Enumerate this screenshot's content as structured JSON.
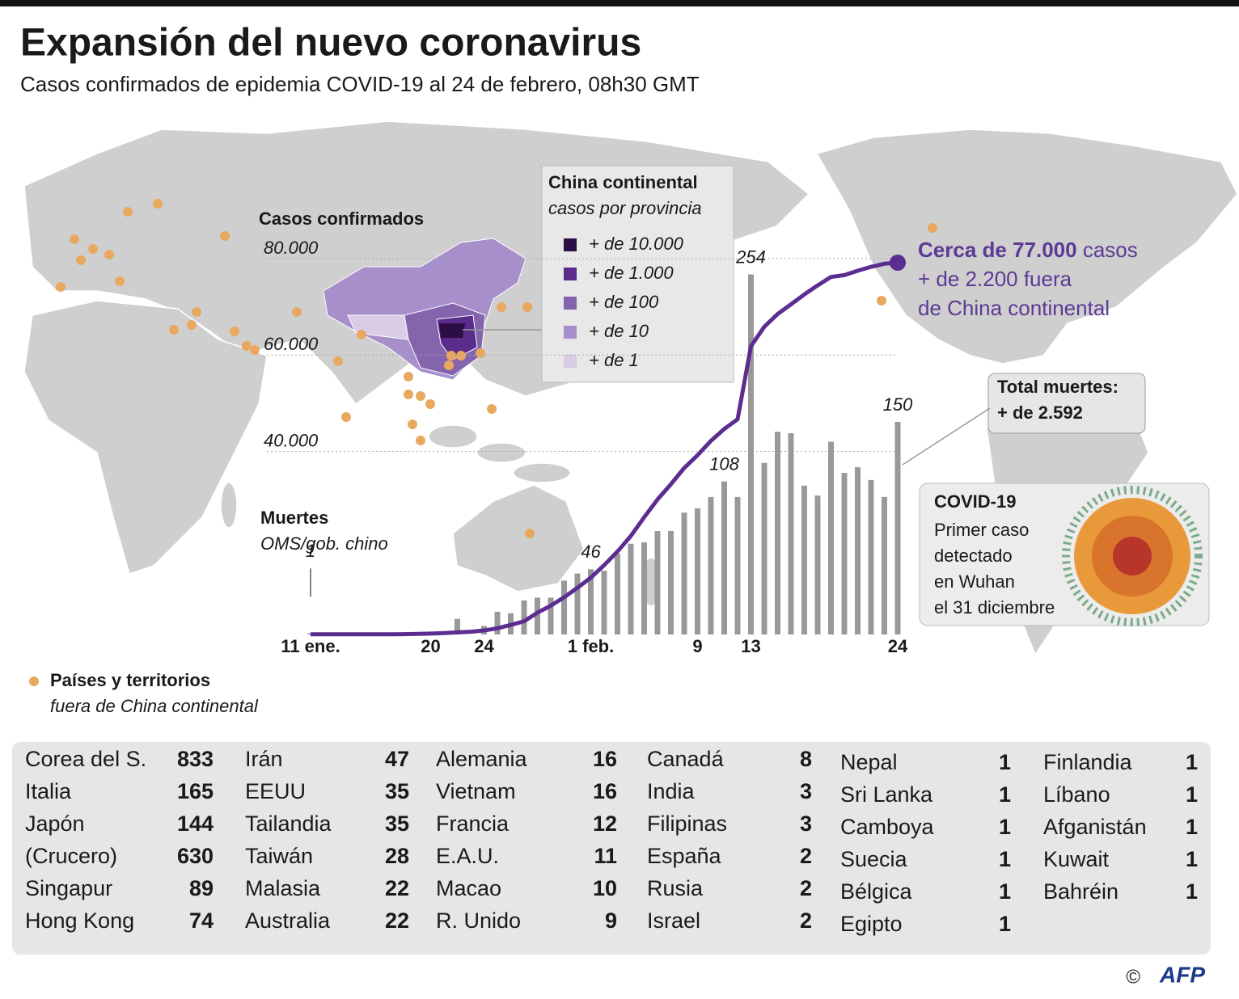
{
  "chart_data": {
    "type": "combo",
    "title": "Expansión del nuevo coronavirus",
    "subtitle": "Casos confirmados de epidemia COVID-19 al 24 de febrero, 08h30 GMT",
    "categories": [
      "11 ene.",
      null,
      null,
      null,
      null,
      null,
      null,
      null,
      null,
      "20",
      null,
      null,
      null,
      "24",
      null,
      null,
      null,
      null,
      null,
      null,
      null,
      "1 feb.",
      null,
      null,
      null,
      null,
      null,
      null,
      null,
      "9",
      null,
      null,
      null,
      "13",
      null,
      null,
      null,
      null,
      null,
      null,
      null,
      null,
      null,
      null,
      "24"
    ],
    "ylim": [
      0,
      80000
    ],
    "yticks": [
      {
        "value": 40000,
        "label": "40.000"
      },
      {
        "value": 60000,
        "label": "60.000"
      },
      {
        "value": 80000,
        "label": "80.000"
      }
    ],
    "y2lim": [
      0,
      272
    ],
    "grid": true,
    "series": [
      {
        "name": "Casos confirmados",
        "type": "line",
        "color": "#5c2d91",
        "values": [
          41,
          41,
          41,
          41,
          41,
          41,
          45,
          62,
          121,
          198,
          291,
          440,
          571,
          830,
          1287,
          1975,
          2744,
          4515,
          5974,
          7711,
          9692,
          11791,
          14380,
          17205,
          20438,
          24324,
          28018,
          31161,
          34546,
          37198,
          40171,
          42638,
          44653,
          59804,
          63851,
          66492,
          68500,
          70548,
          72436,
          74185,
          74576,
          75465,
          76288,
          76936,
          77150
        ]
      },
      {
        "name": "Muertes",
        "source": "OMS/gob. chino",
        "type": "bar",
        "axis": "y2",
        "color": "#999999",
        "values": [
          1,
          0,
          0,
          0,
          0,
          0,
          0,
          0,
          0,
          0,
          0,
          11,
          0,
          6,
          16,
          15,
          24,
          26,
          26,
          38,
          43,
          46,
          45,
          57,
          64,
          65,
          73,
          73,
          86,
          89,
          97,
          108,
          97,
          254,
          121,
          143,
          142,
          105,
          98,
          136,
          114,
          118,
          109,
          97,
          150
        ],
        "value_labels": [
          "1",
          null,
          null,
          null,
          null,
          null,
          null,
          null,
          null,
          null,
          null,
          null,
          null,
          null,
          null,
          null,
          null,
          null,
          null,
          null,
          null,
          "46",
          null,
          null,
          null,
          null,
          null,
          null,
          null,
          null,
          null,
          "108",
          null,
          "254",
          null,
          null,
          null,
          null,
          null,
          null,
          null,
          null,
          null,
          null,
          "150"
        ]
      }
    ],
    "cases_note": [
      "Cerca de 77.000",
      "casos",
      "+ de 2.200 fuera",
      "de China continental"
    ],
    "deaths_note": [
      "Total muertes:",
      "+ de 2.592"
    ]
  },
  "china_map": {
    "title": "China continental",
    "subtitle": "casos por provincia",
    "classes": [
      {
        "label": "+ de 10.000",
        "color": "#2d0e44"
      },
      {
        "label": "+ de 1.000",
        "color": "#5a2d8c"
      },
      {
        "label": "+ de 100",
        "color": "#8464ad"
      },
      {
        "label": "+ de 10",
        "color": "#a78fcb"
      },
      {
        "label": "+ de 1",
        "color": "#d8cce6"
      }
    ]
  },
  "map_legend": {
    "title": "Países y territorios",
    "subtitle": "fuera de China continental",
    "color": "#e8a860"
  },
  "info_box": {
    "title": "COVID-19",
    "lines": [
      "Primer caso",
      "detectado",
      "en Wuhan",
      "el 31 diciembre"
    ]
  },
  "table": {
    "columns": [
      [
        [
          "Corea del S.",
          833
        ],
        [
          "Italia",
          165
        ],
        [
          "Japón",
          144
        ],
        [
          "(Crucero)",
          630
        ],
        [
          "Singapur",
          89
        ],
        [
          "Hong Kong",
          74
        ]
      ],
      [
        [
          "Irán",
          47
        ],
        [
          "EEUU",
          35
        ],
        [
          "Tailandia",
          35
        ],
        [
          "Taiwán",
          28
        ],
        [
          "Malasia",
          22
        ],
        [
          "Australia",
          22
        ]
      ],
      [
        [
          "Alemania",
          16
        ],
        [
          "Vietnam",
          16
        ],
        [
          "Francia",
          12
        ],
        [
          "E.A.U.",
          11
        ],
        [
          "Macao",
          10
        ],
        [
          "R. Unido",
          9
        ]
      ],
      [
        [
          "Canadá",
          8
        ],
        [
          "India",
          3
        ],
        [
          "Filipinas",
          3
        ],
        [
          "España",
          2
        ],
        [
          "Rusia",
          2
        ],
        [
          "Israel",
          2
        ]
      ],
      [
        [
          "Nepal",
          1
        ],
        [
          "Sri Lanka",
          1
        ],
        [
          "Camboya",
          1
        ],
        [
          "Suecia",
          1
        ],
        [
          "Bélgica",
          1
        ],
        [
          "Egipto",
          1
        ]
      ],
      [
        [
          "Finlandia",
          1
        ],
        [
          "Líbano",
          1
        ],
        [
          "Afganistán",
          1
        ],
        [
          "Kuwait",
          1
        ],
        [
          "Bahréin",
          1
        ]
      ]
    ]
  },
  "credit": {
    "symbol": "©",
    "agency": "AFP"
  }
}
